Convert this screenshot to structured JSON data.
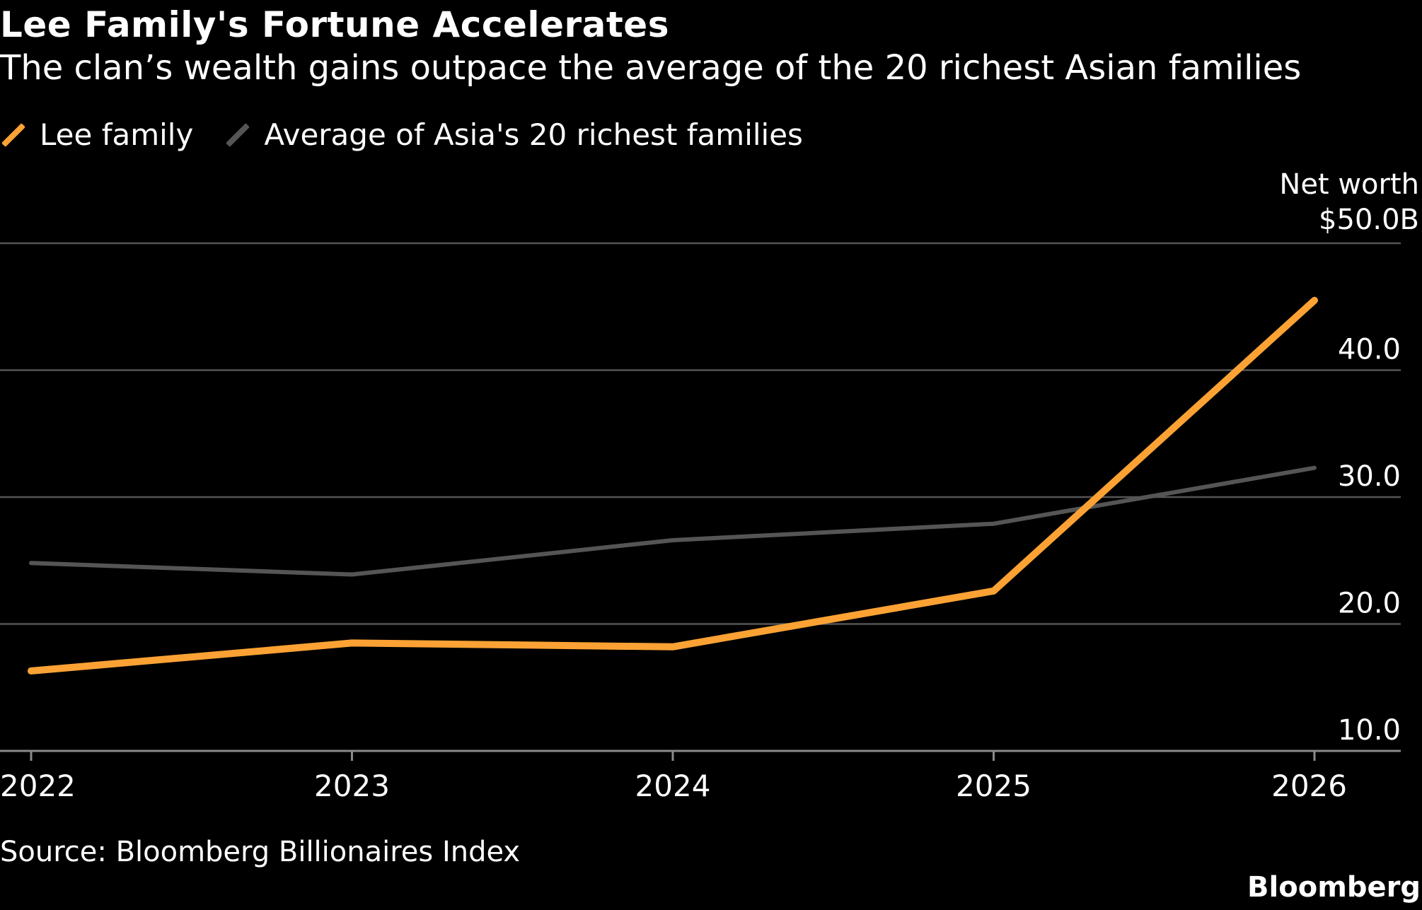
{
  "header": {
    "title": "Lee Family's Fortune Accelerates",
    "subtitle": "The clan’s wealth gains outpace the average of the 20 richest Asian families"
  },
  "legend": {
    "items": [
      {
        "label": "Lee family",
        "color": "#fca234"
      },
      {
        "label": "Average of Asia's 20 richest families",
        "color": "#555555"
      }
    ]
  },
  "axis": {
    "unit_line1": "Net worth",
    "unit_line2": "$50.0B"
  },
  "footer": {
    "source": "Source: Bloomberg Billionaires Index",
    "brand": "Bloomberg"
  },
  "colors": {
    "background": "#000000",
    "gridline": "#555555",
    "text": "#ffffff",
    "lee": "#fca234",
    "average": "#555555"
  },
  "chart_data": {
    "type": "line",
    "title": "Lee Family's Fortune Accelerates",
    "subtitle": "The clan’s wealth gains outpace the average of the 20 richest Asian families",
    "xlabel": "",
    "ylabel": "Net worth",
    "categories": [
      "2022",
      "2023",
      "2024",
      "2025",
      "2026"
    ],
    "x": [
      2022,
      2023,
      2024,
      2025,
      2026
    ],
    "xlim": [
      2022,
      2026
    ],
    "ylim": [
      10,
      50
    ],
    "yticks": [
      {
        "value": 10,
        "label": "10.0"
      },
      {
        "value": 20,
        "label": "20.0"
      },
      {
        "value": 30,
        "label": "30.0"
      },
      {
        "value": 40,
        "label": "40.0"
      },
      {
        "value": 50,
        "label": "$50.0B"
      }
    ],
    "grid": true,
    "legend_position": "top-left",
    "series": [
      {
        "name": "Lee family",
        "color": "#fca234",
        "points": [
          {
            "x": 2022,
            "y": 16.3
          },
          {
            "x": 2023,
            "y": 18.5
          },
          {
            "x": 2024,
            "y": 18.2
          },
          {
            "x": 2025,
            "y": 22.6
          },
          {
            "x": 2026,
            "y": 45.5
          }
        ]
      },
      {
        "name": "Average of Asia's 20 richest families",
        "color": "#555555",
        "points": [
          {
            "x": 2022,
            "y": 24.8
          },
          {
            "x": 2023,
            "y": 23.9
          },
          {
            "x": 2024,
            "y": 26.6
          },
          {
            "x": 2025,
            "y": 27.9
          },
          {
            "x": 2026,
            "y": 32.3
          }
        ]
      }
    ]
  }
}
